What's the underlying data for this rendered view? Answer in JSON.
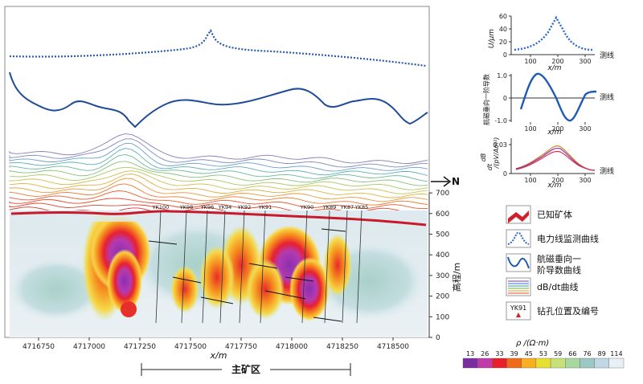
{
  "main_section": {
    "x_ticks": [
      "4716750",
      "4717000",
      "4717250",
      "4717500",
      "4717750",
      "4718000",
      "4718250",
      "4718500"
    ],
    "x_label": "x/m",
    "right_axis_ticks": [
      "0",
      "100",
      "200",
      "300",
      "400",
      "500",
      "600",
      "700"
    ],
    "right_axis_label": "高程/m",
    "north_label": "N",
    "area_label": "主矿区",
    "drillholes": [
      "YK100",
      "YK98",
      "YK96",
      "YK94",
      "YK92",
      "YK91",
      "YK90",
      "YK89",
      "YK87",
      "YK85"
    ]
  },
  "inset_u": {
    "ylabel": "U/μm",
    "y_ticks": [
      "0",
      "20",
      "40",
      "60"
    ],
    "x_ticks": [
      "100",
      "200",
      "300"
    ],
    "xlabel": "x/m",
    "line_label": "测线"
  },
  "inset_deriv": {
    "ylabel": "航磁垂向一阶导数",
    "y_ticks": [
      "1.0",
      "0",
      "-1.0"
    ],
    "x_ticks": [
      "100",
      "200",
      "300"
    ],
    "xlabel": "x/m",
    "line_label": "测线"
  },
  "inset_db": {
    "ylabel_a": "dB",
    "ylabel_b": "dt",
    "ylabel_c": "/(pV/Am²)",
    "y_ticks": [
      "0.03",
      "0"
    ],
    "x_ticks": [
      "100",
      "200",
      "300"
    ],
    "xlabel": "x/m",
    "line_label": "测线"
  },
  "legend": [
    {
      "label": "已知矿体",
      "icon": "orebody-icon"
    },
    {
      "label": "电力线监测曲线",
      "icon": "dotted-curve-icon"
    },
    {
      "label": "航磁垂向一",
      "label2": "阶导数曲线",
      "icon": "solid-curve-icon"
    },
    {
      "label": "dB/dt曲线",
      "icon": "multiline-icon"
    },
    {
      "label": "钻孔位置及编号",
      "icon": "drillhole-icon",
      "icon_text": "YK91"
    }
  ],
  "colorbar": {
    "title": "ρ /(Ω·m)",
    "ticks": [
      "13",
      "26",
      "33",
      "39",
      "45",
      "53",
      "59",
      "66",
      "76",
      "89",
      "114"
    ],
    "colors": [
      "#7a2fa0",
      "#c03aa8",
      "#e8202a",
      "#f06a1c",
      "#f8b020",
      "#e8e030",
      "#c8e078",
      "#a8d8a0",
      "#9cc8c4",
      "#c0d8e4",
      "#e8f0f6"
    ]
  }
}
